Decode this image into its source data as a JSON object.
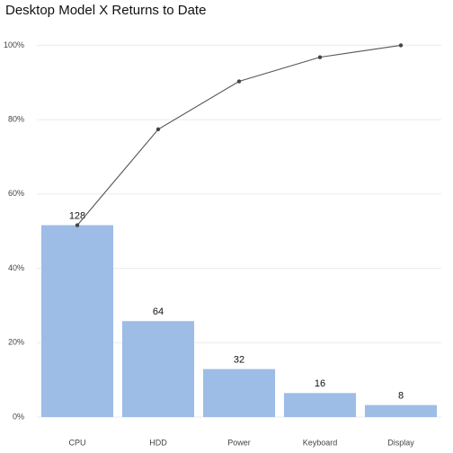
{
  "chart_data": {
    "type": "pareto",
    "title": "Desktop Model X Returns to Date",
    "categories": [
      "CPU",
      "HDD",
      "Power",
      "Keyboard",
      "Display"
    ],
    "series": [
      {
        "type": "bar",
        "axis": "y2",
        "color": "#9dbde6",
        "values": [
          128,
          64,
          32,
          16,
          8
        ]
      },
      {
        "type": "line",
        "color": "#555555",
        "values": [
          51.6,
          77.4,
          90.3,
          96.8,
          100
        ]
      }
    ],
    "ylim": [
      0,
      103
    ],
    "yticks": [
      {
        "value": 0,
        "label": "0%"
      },
      {
        "value": 20,
        "label": "20%"
      },
      {
        "value": 40,
        "label": "40%"
      },
      {
        "value": 60,
        "label": "60%"
      },
      {
        "value": 80,
        "label": "80%"
      },
      {
        "value": 100,
        "label": "100%"
      }
    ],
    "y2lim": [
      0,
      255.44
    ],
    "grid": true
  }
}
